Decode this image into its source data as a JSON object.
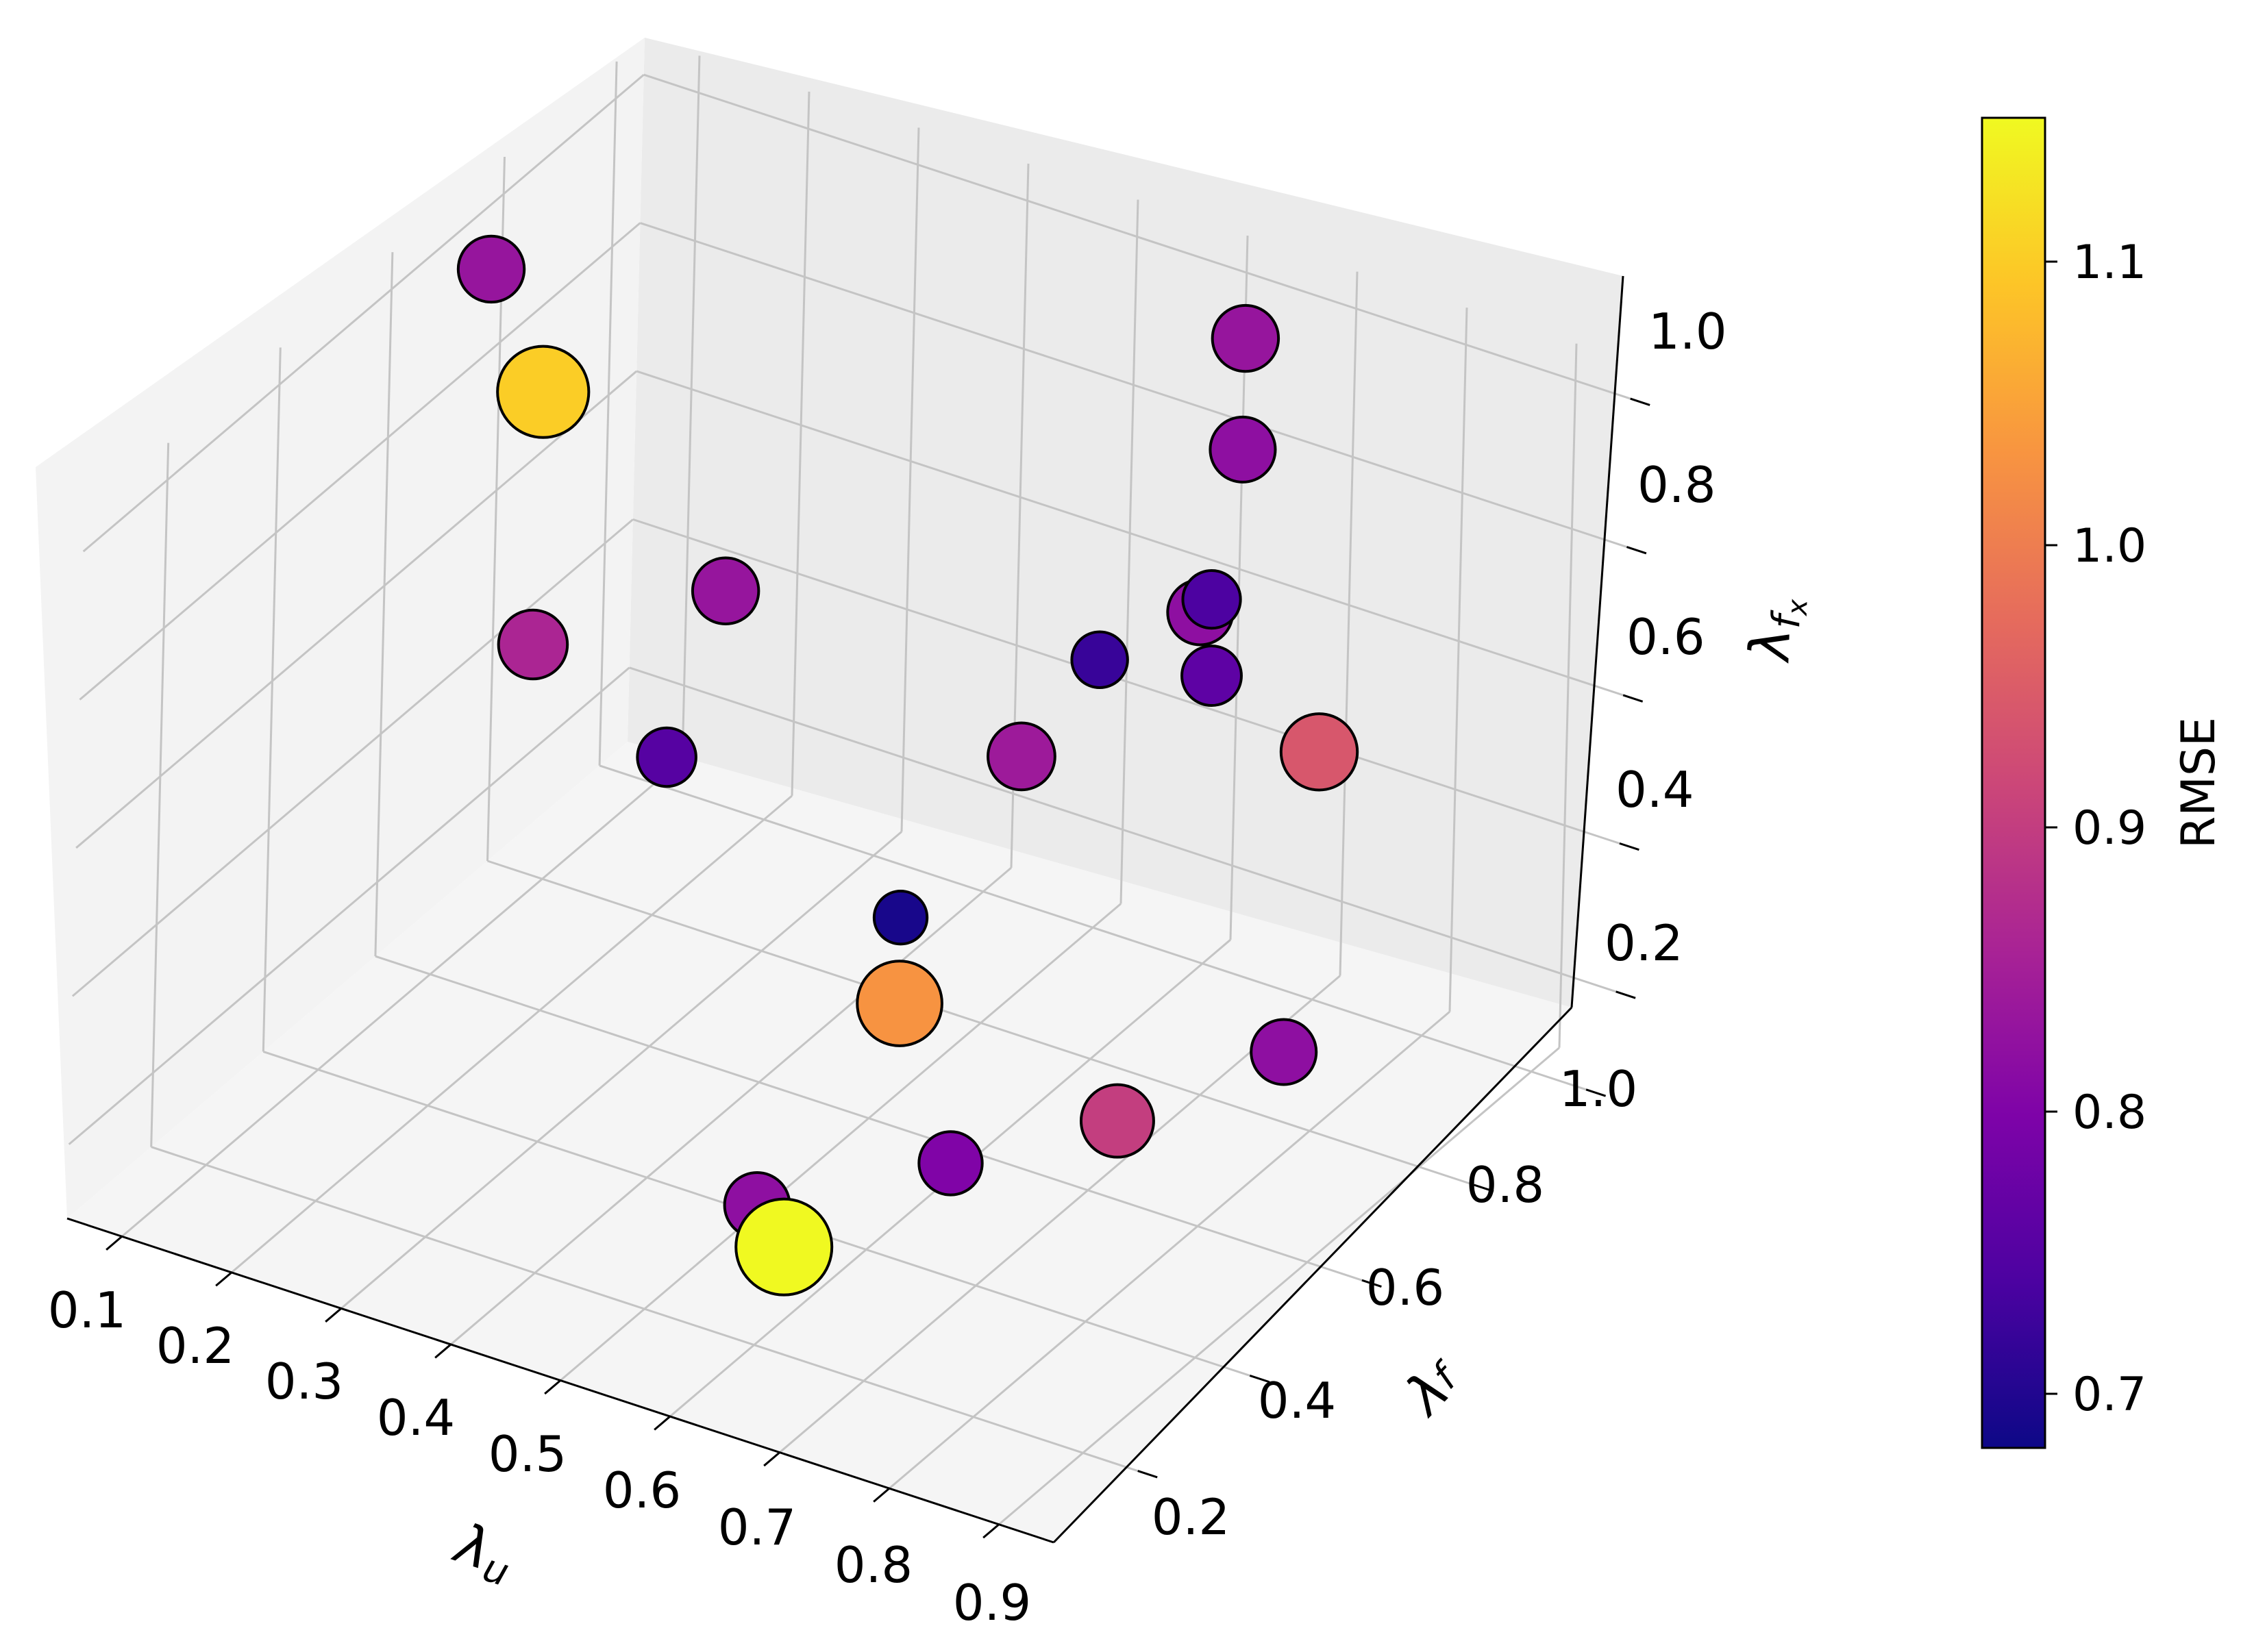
{
  "chart_data": {
    "type": "scatter3d",
    "title": "",
    "xlabel": "λu",
    "ylabel": "λf",
    "zlabel": "λfx",
    "xlim": [
      0.05,
      0.95
    ],
    "ylim": [
      0.05,
      1.05
    ],
    "zlim": [
      0.1,
      1.05
    ],
    "x_ticks": [
      "0.1",
      "0.2",
      "0.3",
      "0.4",
      "0.5",
      "0.6",
      "0.7",
      "0.8",
      "0.9"
    ],
    "y_ticks": [
      "0.2",
      "0.4",
      "0.6",
      "0.8",
      "1.0"
    ],
    "z_ticks": [
      "0.2",
      "0.4",
      "0.6",
      "0.8",
      "1.0"
    ],
    "grid": true,
    "colorbar": {
      "label": "RMSE",
      "min": 0.68,
      "max": 1.15,
      "ticks": [
        "0.7",
        "0.8",
        "0.9",
        "1.0",
        "1.1"
      ],
      "colormap": "plasma"
    },
    "points": [
      {
        "x": 0.1,
        "y": 0.68,
        "z": 1.0,
        "rmse": 0.83
      },
      {
        "x": 0.1,
        "y": 0.78,
        "z": 0.77,
        "rmse": 1.1
      },
      {
        "x": 0.2,
        "y": 0.92,
        "z": 0.46,
        "rmse": 0.83
      },
      {
        "x": 0.2,
        "y": 0.82,
        "z": 0.3,
        "rmse": 0.75
      },
      {
        "x": 0.3,
        "y": 0.37,
        "z": 0.79,
        "rmse": 0.86
      },
      {
        "x": 0.65,
        "y": 0.95,
        "z": 1.0,
        "rmse": 0.83
      },
      {
        "x": 0.65,
        "y": 0.95,
        "z": 0.85,
        "rmse": 0.82
      },
      {
        "x": 0.65,
        "y": 0.9,
        "z": 0.68,
        "rmse": 0.74
      },
      {
        "x": 0.63,
        "y": 0.92,
        "z": 0.64,
        "rmse": 0.82
      },
      {
        "x": 0.68,
        "y": 0.5,
        "z": 0.74,
        "rmse": 0.84
      },
      {
        "x": 0.55,
        "y": 0.9,
        "z": 0.55,
        "rmse": 0.72
      },
      {
        "x": 0.85,
        "y": 0.7,
        "z": 0.7,
        "rmse": 0.94
      },
      {
        "x": 0.9,
        "y": 0.4,
        "z": 1.02,
        "rmse": 0.76
      },
      {
        "x": 0.6,
        "y": 0.45,
        "z": 0.4,
        "rmse": 1.03
      },
      {
        "x": 0.45,
        "y": 0.75,
        "z": 0.25,
        "rmse": 0.69
      },
      {
        "x": 0.75,
        "y": 0.85,
        "z": 0.15,
        "rmse": 0.82
      },
      {
        "x": 0.75,
        "y": 0.55,
        "z": 0.25,
        "rmse": 0.9
      },
      {
        "x": 0.6,
        "y": 0.55,
        "z": 0.12,
        "rmse": 0.8
      },
      {
        "x": 0.55,
        "y": 0.3,
        "z": 0.2,
        "rmse": 0.82
      },
      {
        "x": 0.6,
        "y": 0.25,
        "z": 0.2,
        "rmse": 1.15
      }
    ]
  }
}
